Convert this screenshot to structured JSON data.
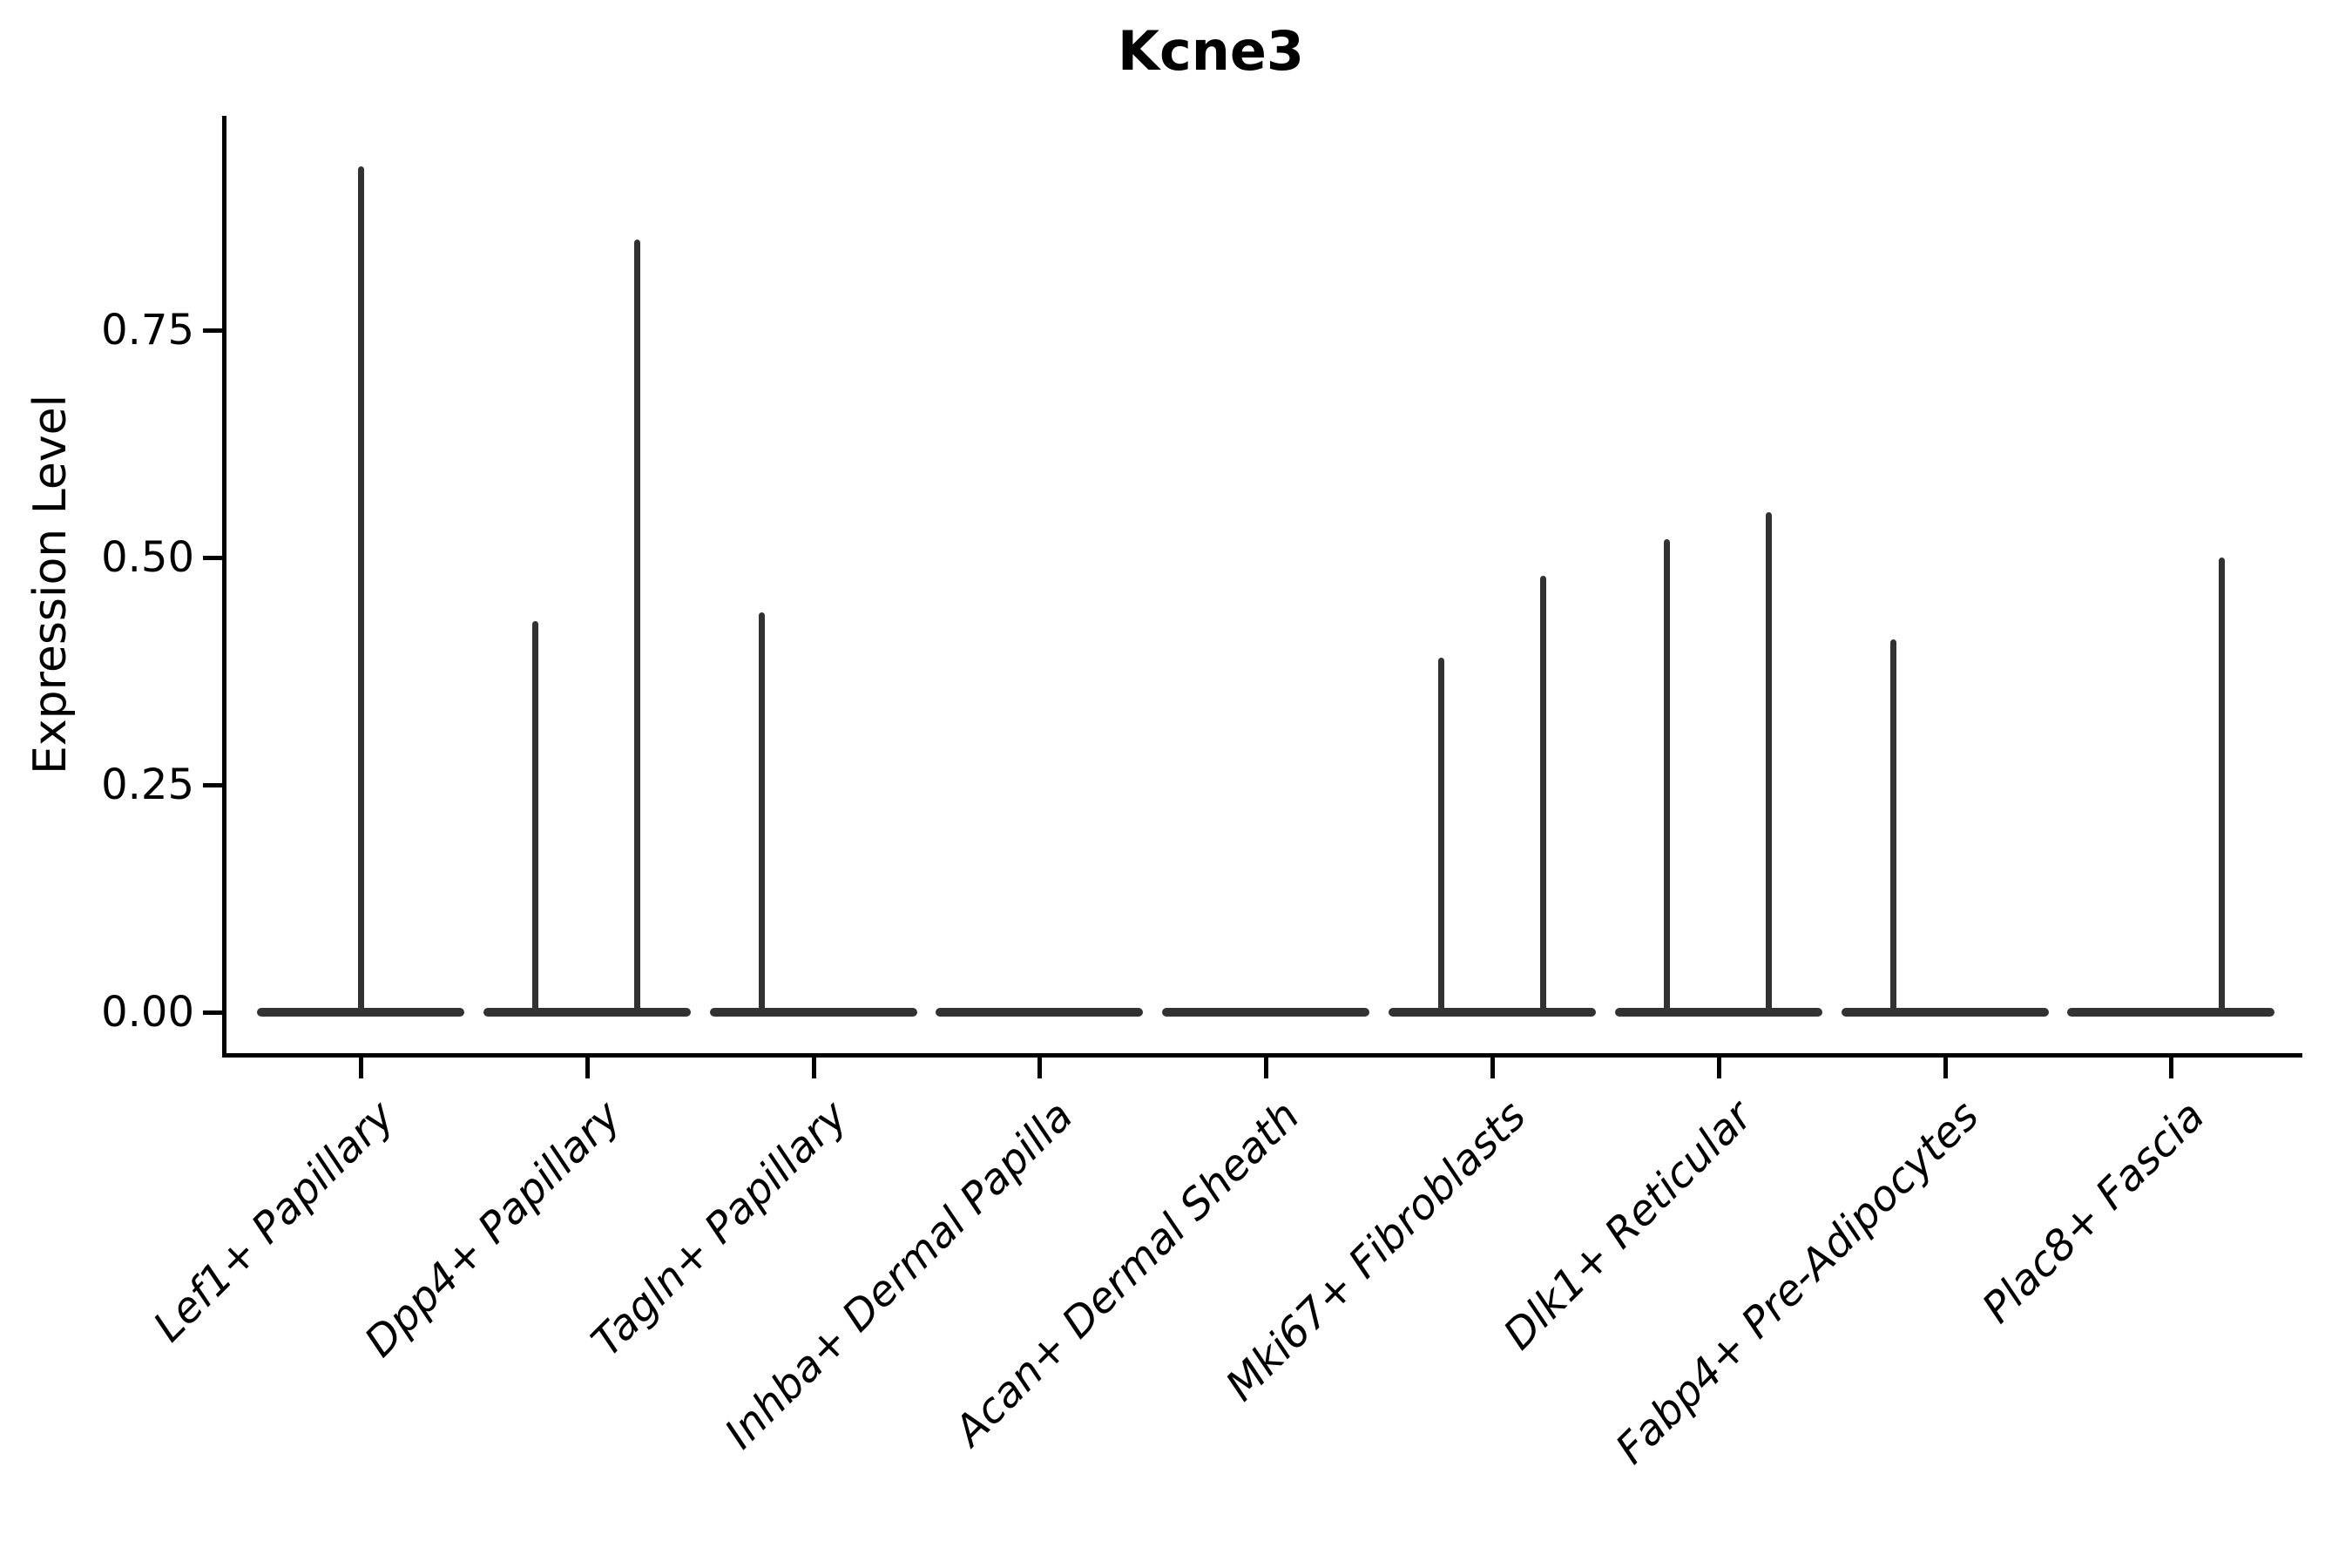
{
  "title": "Kcne3",
  "ylabel": "Expression Level",
  "chart_data": {
    "type": "violin",
    "title": "Kcne3",
    "xlabel": "",
    "ylabel": "Expression Level",
    "ytick_labels": [
      "0.00",
      "0.25",
      "0.50",
      "0.75"
    ],
    "ytick_values": [
      0,
      0.25,
      0.5,
      0.75
    ],
    "ylim": [
      0,
      0.98
    ],
    "grid": false,
    "legend": "none",
    "description": "Violin plot of Kcne3 expression; every category collapses to a flat baseline at 0 with thin density spikes rising to the maximum expression of rare positive cells.",
    "categories": [
      {
        "label": "Lef1+ Papillary",
        "baseline_value": 0,
        "spikes": [
          {
            "position": "center",
            "max": 0.93
          }
        ]
      },
      {
        "label": "Dpp4+ Papillary",
        "baseline_value": 0,
        "spikes": [
          {
            "position": "left",
            "max": 0.43
          },
          {
            "position": "right",
            "max": 0.85
          }
        ]
      },
      {
        "label": "Tagln+ Papillary",
        "baseline_value": 0,
        "spikes": [
          {
            "position": "left",
            "max": 0.44
          }
        ]
      },
      {
        "label": "Inhba+ Dermal Papilla",
        "baseline_value": 0,
        "spikes": []
      },
      {
        "label": "Acan+ Dermal Sheath",
        "baseline_value": 0,
        "spikes": []
      },
      {
        "label": "Mki67+ Fibroblasts",
        "baseline_value": 0,
        "spikes": [
          {
            "position": "left",
            "max": 0.39
          },
          {
            "position": "right",
            "max": 0.48
          }
        ]
      },
      {
        "label": "Dlk1+ Reticular",
        "baseline_value": 0,
        "spikes": [
          {
            "position": "left",
            "max": 0.52
          },
          {
            "position": "right",
            "max": 0.55
          }
        ]
      },
      {
        "label": "Fabp4+ Pre-Adipocytes",
        "baseline_value": 0,
        "spikes": [
          {
            "position": "left",
            "max": 0.41
          }
        ]
      },
      {
        "label": "Plac8+ Fascia",
        "baseline_value": 0,
        "spikes": [
          {
            "position": "right",
            "max": 0.5
          }
        ]
      }
    ],
    "colors": {
      "violin": "#323232",
      "axis": "#000000",
      "text": "#000000",
      "background": "#ffffff"
    }
  }
}
